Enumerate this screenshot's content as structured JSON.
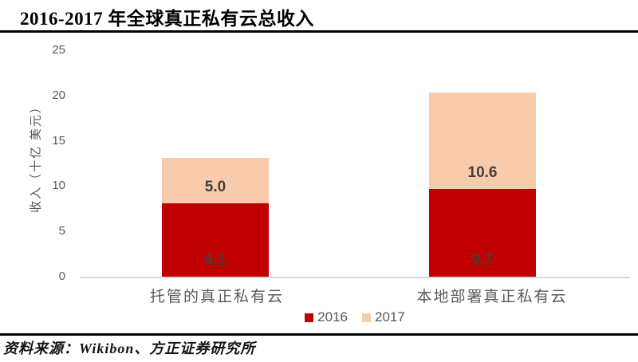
{
  "header": {
    "title": "2016-2017 年全球真正私有云总收入"
  },
  "footer": {
    "source": "资料来源：Wikibon、方正证券研究所"
  },
  "chart_data": {
    "type": "bar",
    "stacked": true,
    "title": "2016-2017 年全球真正私有云总收入",
    "ylabel": "收入（十亿 美元）",
    "xlabel": "",
    "ylim": [
      0,
      25
    ],
    "yticks": [
      0,
      5,
      10,
      15,
      20,
      25
    ],
    "grid": false,
    "legend_position": "bottom",
    "categories": [
      "托管的真正私有云",
      "本地部署真正私有云"
    ],
    "series": [
      {
        "name": "2016",
        "color": "#c00000",
        "values": [
          8.1,
          9.7
        ],
        "labels": [
          "8.1",
          "9.7"
        ]
      },
      {
        "name": "2017",
        "color": "#f8cbad",
        "values": [
          5.0,
          10.6
        ],
        "labels": [
          "5.0",
          "10.6"
        ]
      }
    ]
  },
  "colors": {
    "series_2016": "#c00000",
    "series_2017": "#f8cbad",
    "axis_text": "#595959",
    "data_label": "#404040",
    "baseline": "#d9d9d9",
    "rule": "#000000",
    "background": "#ffffff"
  }
}
